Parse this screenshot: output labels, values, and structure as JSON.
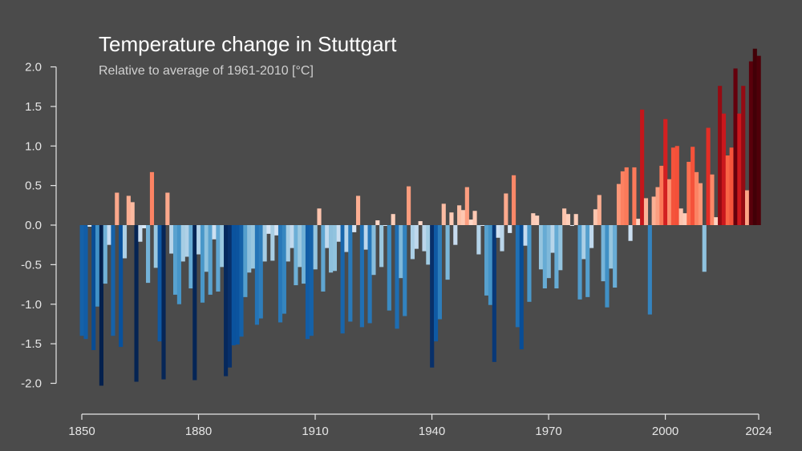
{
  "chart_data": {
    "type": "bar",
    "title": "Temperature change in Stuttgart",
    "subtitle": "Relative to average of 1961-2010  [°C]",
    "xlabel": "",
    "ylabel": "",
    "x_start": 1850,
    "x_end": 2024,
    "ylim": [
      -2.0,
      2.0
    ],
    "xlim": [
      1850,
      2024
    ],
    "yticks": [
      "2.0",
      "1.5",
      "1.0",
      "0.5",
      "0.0",
      "-0.5",
      "-1.0",
      "-1.5",
      "-2.0"
    ],
    "ytick_values": [
      2.0,
      1.5,
      1.0,
      0.5,
      0.0,
      -0.5,
      -1.0,
      -1.5,
      -2.0
    ],
    "xticks": [
      "1850",
      "1880",
      "1910",
      "1940",
      "1970",
      "2000",
      "2024"
    ],
    "xtick_values": [
      1850,
      1880,
      1910,
      1940,
      1970,
      2000,
      2024
    ],
    "grid": false,
    "legend": "none",
    "colors": {
      "background": "#4b4b4b",
      "cold_scale": [
        "#deebf7",
        "#c6dbef",
        "#9ecae1",
        "#6baed6",
        "#4292c6",
        "#2171b5",
        "#08519c",
        "#08306b",
        "#041f4a"
      ],
      "warm_scale": [
        "#fee0d2",
        "#fcbba1",
        "#fc9272",
        "#fb6a4a",
        "#ef3b2c",
        "#cb181d",
        "#a50f15",
        "#67000d",
        "#3f0007"
      ]
    },
    "values": [
      -1.4,
      -1.44,
      -0.02,
      -1.58,
      -1.03,
      -2.03,
      -0.74,
      -0.25,
      -1.4,
      0.41,
      -1.54,
      -0.42,
      0.37,
      0.29,
      -1.98,
      -0.21,
      -0.04,
      -0.73,
      0.67,
      -0.54,
      -1.47,
      -1.95,
      0.41,
      -0.36,
      -0.88,
      -1.0,
      -0.46,
      -0.4,
      -0.8,
      -1.96,
      -0.37,
      -0.98,
      -0.59,
      -0.88,
      -0.18,
      -0.84,
      -0.53,
      -1.91,
      -1.8,
      -1.52,
      -1.51,
      -1.41,
      -0.91,
      -0.6,
      -0.55,
      -1.26,
      -1.18,
      -0.46,
      -0.11,
      -0.45,
      -0.13,
      -1.23,
      -1.12,
      -0.46,
      -0.29,
      -0.76,
      -0.53,
      -0.74,
      -1.44,
      -1.4,
      -0.56,
      0.21,
      -0.84,
      -0.29,
      -0.6,
      -0.58,
      -0.21,
      -1.37,
      -0.34,
      -1.22,
      -0.09,
      0.37,
      -1.29,
      -0.31,
      -1.24,
      -0.63,
      0.06,
      -0.53,
      -0.01,
      -1.08,
      0.14,
      -1.31,
      -0.67,
      -1.15,
      0.49,
      -0.43,
      -0.3,
      0.05,
      -0.33,
      -0.5,
      -1.8,
      -1.47,
      -1.19,
      0.27,
      -0.69,
      0.16,
      -0.25,
      0.25,
      0.19,
      0.48,
      0.07,
      0.18,
      -0.37,
      -0.01,
      -0.89,
      -1.01,
      -1.73,
      -0.16,
      -0.33,
      0.4,
      -0.1,
      0.63,
      -1.29,
      -1.57,
      -0.26,
      -0.97,
      0.15,
      0.12,
      -0.56,
      -0.8,
      -0.67,
      -0.35,
      -0.8,
      -0.57,
      0.21,
      0.14,
      -0.01,
      0.14,
      -0.94,
      -0.43,
      -0.91,
      -0.29,
      0.2,
      0.38,
      -0.71,
      -1.04,
      -0.55,
      -0.79,
      0.52,
      0.68,
      0.73,
      -0.2,
      0.73,
      0.08,
      1.46,
      0.34,
      -1.13,
      0.36,
      0.48,
      0.75,
      1.34,
      0.58,
      0.98,
      1.0,
      0.21,
      0.15,
      0.8,
      0.99,
      0.67,
      0.53,
      -0.59,
      1.23,
      0.64,
      0.1,
      1.76,
      1.41,
      0.88,
      0.98,
      1.98,
      1.41,
      1.76,
      0.44,
      2.07,
      2.23,
      2.14
    ]
  }
}
